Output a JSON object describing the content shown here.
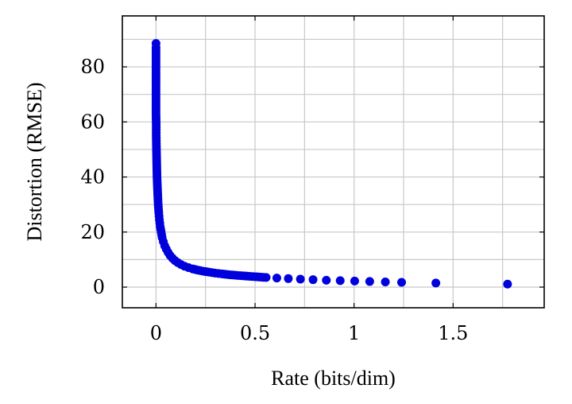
{
  "chart_data": {
    "type": "scatter",
    "title": "",
    "xlabel": "Rate (bits/dim)",
    "ylabel": "Distortion (RMSE)",
    "xlim": [
      -0.17,
      1.96
    ],
    "ylim": [
      -7.5,
      98.5
    ],
    "xticks": [
      0,
      0.5,
      1,
      1.5
    ],
    "xtick_labels": [
      "0",
      "0.5",
      "1",
      "1.5"
    ],
    "yticks": [
      0,
      20,
      40,
      60,
      80
    ],
    "ytick_labels": [
      "0",
      "20",
      "40",
      "60",
      "80"
    ],
    "grid": true,
    "marker_color": "#0000dd",
    "series": [
      {
        "points": [
          [
            0.0,
            88.5
          ],
          [
            0.0,
            87.0
          ],
          [
            0.0,
            85.0
          ],
          [
            0.0,
            82.0
          ],
          [
            0.0,
            79.0
          ],
          [
            0.0,
            75.0
          ],
          [
            0.0,
            71.0
          ],
          [
            0.0,
            67.0
          ],
          [
            0.0,
            63.0
          ],
          [
            0.001,
            59.0
          ],
          [
            0.001,
            55.0
          ],
          [
            0.002,
            51.0
          ],
          [
            0.003,
            47.0
          ],
          [
            0.004,
            43.5
          ],
          [
            0.005,
            40.0
          ],
          [
            0.007,
            36.5
          ],
          [
            0.009,
            33.0
          ],
          [
            0.011,
            30.0
          ],
          [
            0.014,
            27.0
          ],
          [
            0.017,
            24.5
          ],
          [
            0.021,
            22.0
          ],
          [
            0.026,
            20.0
          ],
          [
            0.031,
            18.0
          ],
          [
            0.037,
            16.5
          ],
          [
            0.044,
            15.0
          ],
          [
            0.052,
            13.8
          ],
          [
            0.061,
            12.6
          ],
          [
            0.071,
            11.5
          ],
          [
            0.083,
            10.5
          ],
          [
            0.096,
            9.6
          ],
          [
            0.11,
            8.9
          ],
          [
            0.126,
            8.2
          ],
          [
            0.144,
            7.6
          ],
          [
            0.164,
            7.1
          ],
          [
            0.186,
            6.6
          ],
          [
            0.21,
            6.2
          ],
          [
            0.237,
            5.8
          ],
          [
            0.266,
            5.45
          ],
          [
            0.298,
            5.1
          ],
          [
            0.333,
            4.8
          ],
          [
            0.371,
            4.5
          ],
          [
            0.412,
            4.25
          ],
          [
            0.457,
            4.0
          ],
          [
            0.505,
            3.75
          ],
          [
            0.556,
            3.5
          ],
          [
            0.61,
            3.3
          ],
          [
            0.668,
            3.1
          ],
          [
            0.729,
            2.9
          ],
          [
            0.793,
            2.7
          ],
          [
            0.86,
            2.5
          ],
          [
            0.93,
            2.35
          ],
          [
            1.003,
            2.2
          ],
          [
            1.079,
            2.05
          ],
          [
            1.158,
            1.9
          ],
          [
            1.24,
            1.75
          ],
          [
            1.413,
            1.5
          ],
          [
            1.775,
            1.1
          ]
        ]
      }
    ]
  }
}
